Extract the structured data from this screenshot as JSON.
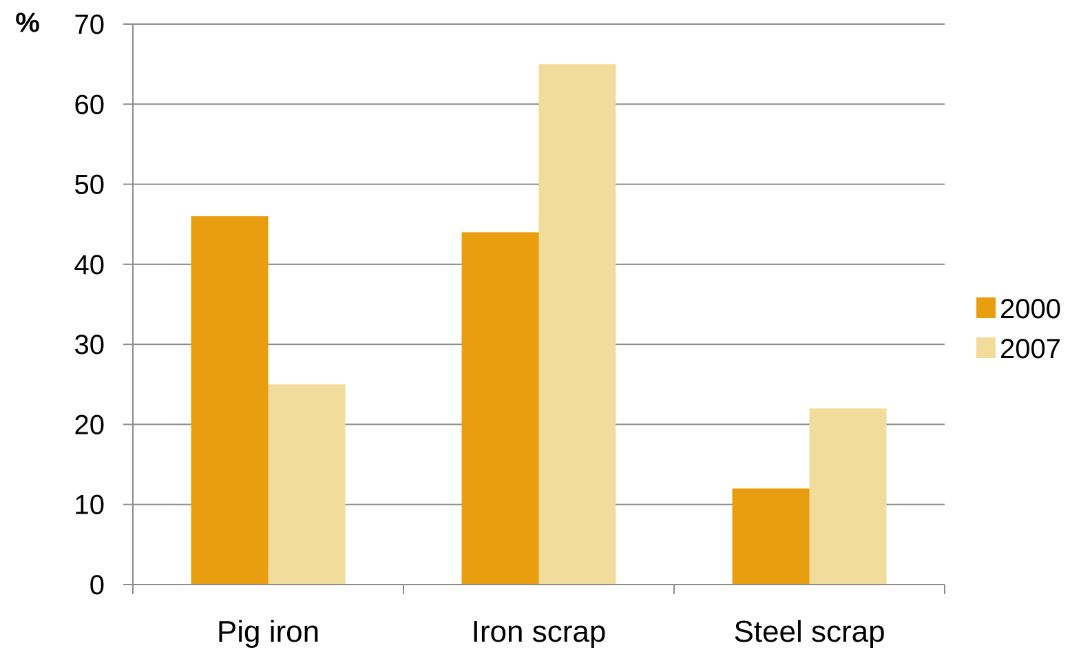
{
  "chart_data": {
    "type": "bar",
    "title": "",
    "xlabel": "",
    "ylabel": "%",
    "categories": [
      "Pig iron",
      "Iron scrap",
      "Steel scrap"
    ],
    "series": [
      {
        "name": "2000",
        "color": "#E89E0E",
        "values": [
          46,
          44,
          12
        ]
      },
      {
        "name": "2007",
        "color": "#F2DC9B",
        "values": [
          25,
          65,
          22
        ]
      }
    ],
    "ylim": [
      0,
      70
    ],
    "yticks": [
      "0",
      "10",
      "20",
      "30",
      "40",
      "50",
      "60",
      "70"
    ],
    "grid": true,
    "legend_position": "right"
  }
}
